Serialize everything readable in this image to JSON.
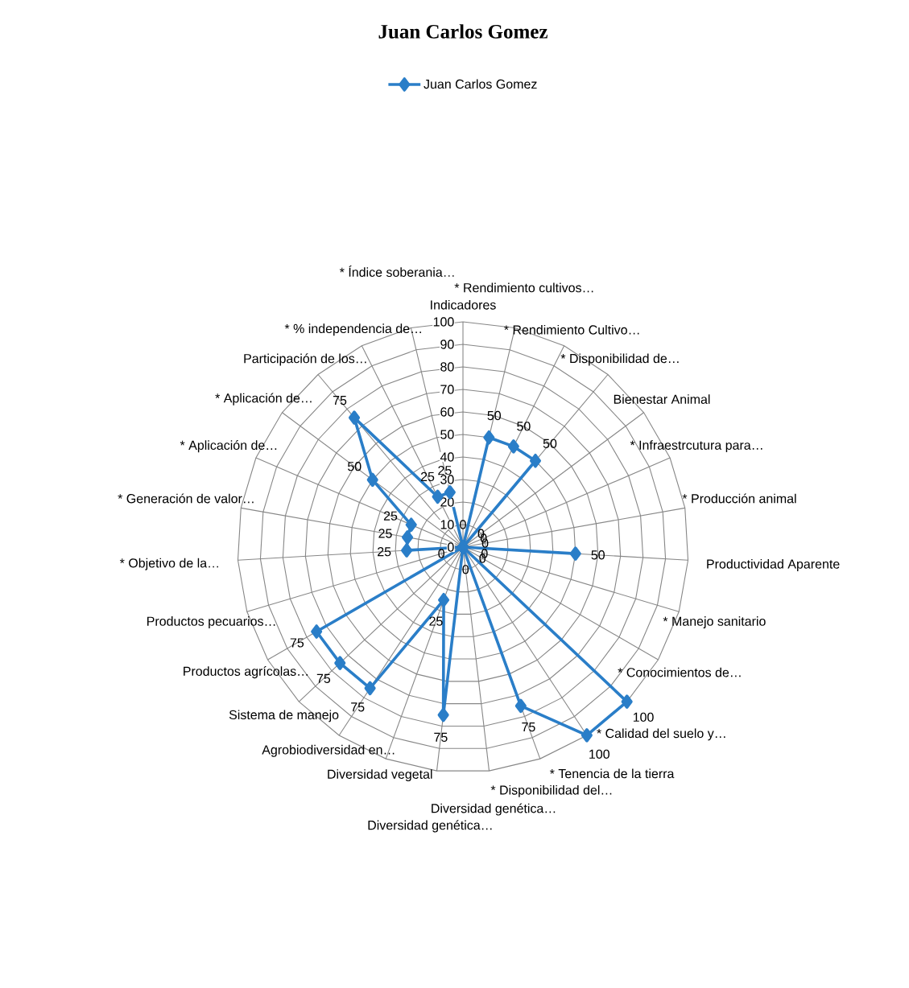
{
  "chart_data": {
    "type": "radar",
    "title": "Juan Carlos Gomez",
    "categories": [
      "Indicadores",
      "* Rendimiento cultivos…",
      "* Rendimiento Cultivo…",
      "* Disponibilidad de…",
      "Bienestar Animal",
      "* Infraestrcutura para…",
      "* Producción  animal",
      "Productividad Aparente",
      "* Manejo sanitario",
      "* Conocimientos de…",
      "* Calidad del suelo y…",
      "* Tenencia de la tierra",
      "* Disponibilidad del…",
      "Diversidad genética…",
      "Diversidad genética…",
      "Diversidad vegetal",
      "Agrobiodiversidad en…",
      "Sistema de manejo",
      "Productos agrícolas…",
      "Productos pecuarios…",
      "* Objetivo de la…",
      "* Generación de valor…",
      "* Aplicación de…",
      "* Aplicación de…",
      "Participación de los…",
      "* % independencia  de…",
      "* Índice soberania…"
    ],
    "series": [
      {
        "name": "Juan Carlos Gomez",
        "color": "#2a7ec8",
        "values": [
          0,
          50,
          50,
          50,
          0,
          0,
          0,
          50,
          0,
          0,
          100,
          100,
          75,
          0,
          75,
          25,
          75,
          75,
          75,
          0,
          25,
          25,
          25,
          50,
          75,
          25,
          25
        ]
      }
    ],
    "ylim": [
      0,
      100
    ],
    "yticks": [
      0,
      10,
      20,
      30,
      40,
      50,
      60,
      70,
      80,
      90,
      100
    ],
    "grid": true,
    "legend": "top",
    "marker": "diamond",
    "data_labels": true
  }
}
